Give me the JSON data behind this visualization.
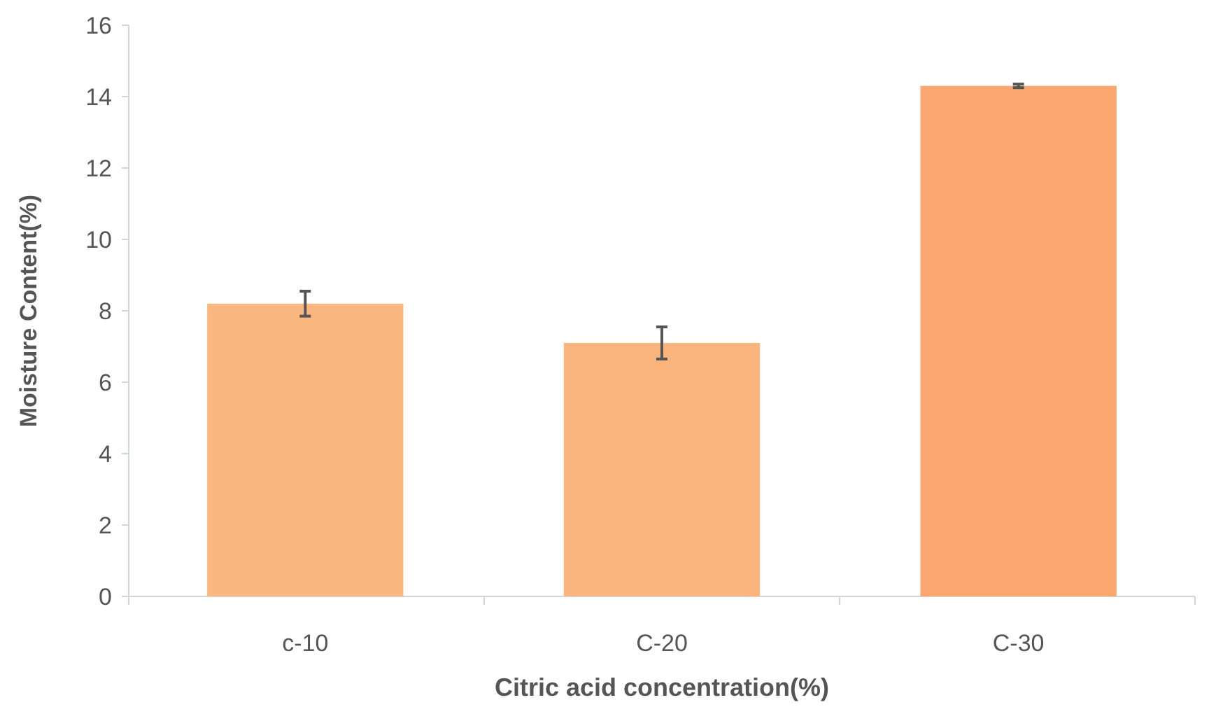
{
  "chart_data": {
    "type": "bar",
    "xlabel": "Citric acid concentration(%)",
    "ylabel": "Moisture Content(%)",
    "categories": [
      "c-10",
      "C-20",
      "C-30"
    ],
    "values": [
      8.2,
      7.1,
      14.3
    ],
    "errors": [
      0.35,
      0.45,
      0.05
    ],
    "colors": [
      "#fbb780",
      "#fbb47c",
      "#f9a76e"
    ],
    "ylim": [
      0,
      16
    ],
    "yticks": [
      0,
      2,
      4,
      6,
      8,
      10,
      12,
      14,
      16
    ],
    "grid": false
  }
}
